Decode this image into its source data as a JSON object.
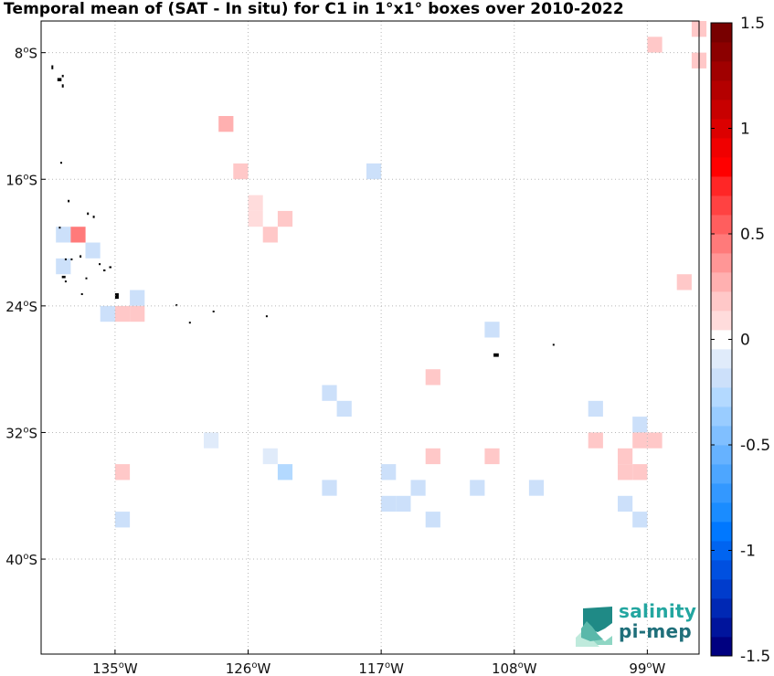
{
  "title": "Temporal mean of (SAT - In situ) for C1 in 1°x1° boxes over 2010-2022",
  "logo": {
    "line1": "salinity",
    "line2": "pi-mep"
  },
  "colors": {
    "grid": "#b8b8b8",
    "frame": "#000000",
    "land": "#000000"
  },
  "chart_data": {
    "type": "heatmap",
    "title": "Temporal mean of (SAT - In situ) for C1 in 1°x1° boxes over 2010-2022",
    "x_ticks": [
      {
        "value": -135,
        "deg": "135",
        "hemi": "W"
      },
      {
        "value": -126,
        "deg": "126",
        "hemi": "W"
      },
      {
        "value": -117,
        "deg": "117",
        "hemi": "W"
      },
      {
        "value": -108,
        "deg": "108",
        "hemi": "W"
      },
      {
        "value": -99,
        "deg": "99",
        "hemi": "W"
      }
    ],
    "y_ticks": [
      {
        "value": -8,
        "deg": "8",
        "hemi": "S"
      },
      {
        "value": -16,
        "deg": "16",
        "hemi": "S"
      },
      {
        "value": -24,
        "deg": "24",
        "hemi": "S"
      },
      {
        "value": -32,
        "deg": "32",
        "hemi": "S"
      },
      {
        "value": -40,
        "deg": "40",
        "hemi": "S"
      }
    ],
    "xlim": [
      -140,
      -95.5
    ],
    "ylim": [
      -46,
      -6
    ],
    "grid": true,
    "colorbar": {
      "vmin": -1.5,
      "vmax": 1.5,
      "ticks": [
        {
          "value": 1.5,
          "label": "1.5"
        },
        {
          "value": 1,
          "label": "1"
        },
        {
          "value": 0.5,
          "label": "0.5"
        },
        {
          "value": 0,
          "label": "0"
        },
        {
          "value": -0.5,
          "label": "-0.5"
        },
        {
          "value": -1,
          "label": "-1"
        },
        {
          "value": -1.5,
          "label": "-1.5"
        }
      ],
      "colors": [
        "#000080",
        "#00149c",
        "#0028b4",
        "#003ccc",
        "#0050e0",
        "#0064f0",
        "#0078ff",
        "#1a8cff",
        "#3398ff",
        "#4da6ff",
        "#66b2ff",
        "#80bfff",
        "#99ccff",
        "#b3d9ff",
        "#cce0fa",
        "#e0ebfa",
        "#ffffff",
        "#ffdcdc",
        "#ffc8c8",
        "#ffb0b0",
        "#ff9696",
        "#ff7a7a",
        "#ff5e5e",
        "#ff4242",
        "#ff2626",
        "#ff0000",
        "#f00000",
        "#dc0000",
        "#c80000",
        "#b40000",
        "#a00000",
        "#8c0000",
        "#780000"
      ]
    },
    "cells": [
      {
        "lon": -98.5,
        "lat": -7.5,
        "value": 0.15
      },
      {
        "lon": -95.5,
        "lat": -6.5,
        "value": 0.15
      },
      {
        "lon": -95.5,
        "lat": -8.5,
        "value": 0.15
      },
      {
        "lon": -127.5,
        "lat": -12.5,
        "value": 0.3
      },
      {
        "lon": -126.5,
        "lat": -15.5,
        "value": 0.15
      },
      {
        "lon": -117.5,
        "lat": -15.5,
        "value": -0.15
      },
      {
        "lon": -125.5,
        "lat": -17.5,
        "value": 0.12
      },
      {
        "lon": -125.5,
        "lat": -18.5,
        "value": 0.12
      },
      {
        "lon": -123.5,
        "lat": -18.5,
        "value": 0.15
      },
      {
        "lon": -124.5,
        "lat": -19.5,
        "value": 0.15
      },
      {
        "lon": -138.5,
        "lat": -19.5,
        "value": -0.15
      },
      {
        "lon": -137.5,
        "lat": -19.5,
        "value": 0.45
      },
      {
        "lon": -136.5,
        "lat": -20.5,
        "value": -0.15
      },
      {
        "lon": -138.5,
        "lat": -21.5,
        "value": -0.15
      },
      {
        "lon": -96.5,
        "lat": -22.5,
        "value": 0.15
      },
      {
        "lon": -133.5,
        "lat": -23.5,
        "value": -0.15
      },
      {
        "lon": -134.5,
        "lat": -24.5,
        "value": 0.15
      },
      {
        "lon": -133.5,
        "lat": -24.5,
        "value": 0.15
      },
      {
        "lon": -135.5,
        "lat": -24.5,
        "value": -0.15
      },
      {
        "lon": -109.5,
        "lat": -25.5,
        "value": -0.15
      },
      {
        "lon": -113.5,
        "lat": -28.5,
        "value": 0.15
      },
      {
        "lon": -120.5,
        "lat": -29.5,
        "value": -0.15
      },
      {
        "lon": -119.5,
        "lat": -30.5,
        "value": -0.15
      },
      {
        "lon": -102.5,
        "lat": -30.5,
        "value": -0.15
      },
      {
        "lon": -99.5,
        "lat": -31.5,
        "value": -0.15
      },
      {
        "lon": -128.5,
        "lat": -32.5,
        "value": -0.12
      },
      {
        "lon": -102.5,
        "lat": -32.5,
        "value": 0.15
      },
      {
        "lon": -99.5,
        "lat": -32.5,
        "value": 0.15
      },
      {
        "lon": -98.5,
        "lat": -32.5,
        "value": 0.15
      },
      {
        "lon": -100.5,
        "lat": -33.5,
        "value": 0.15
      },
      {
        "lon": -124.5,
        "lat": -33.5,
        "value": -0.12
      },
      {
        "lon": -113.5,
        "lat": -33.5,
        "value": 0.15
      },
      {
        "lon": -109.5,
        "lat": -33.5,
        "value": 0.15
      },
      {
        "lon": -100.5,
        "lat": -34.5,
        "value": 0.15
      },
      {
        "lon": -99.5,
        "lat": -34.5,
        "value": 0.15
      },
      {
        "lon": -134.5,
        "lat": -34.5,
        "value": 0.15
      },
      {
        "lon": -123.5,
        "lat": -34.5,
        "value": -0.3
      },
      {
        "lon": -116.5,
        "lat": -34.5,
        "value": -0.15
      },
      {
        "lon": -120.5,
        "lat": -35.5,
        "value": -0.15
      },
      {
        "lon": -114.5,
        "lat": -35.5,
        "value": -0.15
      },
      {
        "lon": -110.5,
        "lat": -35.5,
        "value": -0.15
      },
      {
        "lon": -106.5,
        "lat": -35.5,
        "value": -0.15
      },
      {
        "lon": -116.5,
        "lat": -36.5,
        "value": -0.15
      },
      {
        "lon": -115.5,
        "lat": -36.5,
        "value": -0.15
      },
      {
        "lon": -100.5,
        "lat": -36.5,
        "value": -0.15
      },
      {
        "lon": -134.5,
        "lat": -37.5,
        "value": -0.15
      },
      {
        "lon": -113.5,
        "lat": -37.5,
        "value": -0.15
      },
      {
        "lon": -99.5,
        "lat": -37.5,
        "value": -0.15
      }
    ],
    "land": [
      {
        "lon": -139.3,
        "lat": -8.8,
        "w": 0.12,
        "h": 0.25
      },
      {
        "lon": -138.9,
        "lat": -9.6,
        "w": 0.28,
        "h": 0.2
      },
      {
        "lon": -138.6,
        "lat": -9.4,
        "w": 0.1,
        "h": 0.15
      },
      {
        "lon": -138.6,
        "lat": -10.0,
        "w": 0.12,
        "h": 0.2
      },
      {
        "lon": -138.7,
        "lat": -14.9,
        "w": 0.06,
        "h": 0.1
      },
      {
        "lon": -138.2,
        "lat": -17.3,
        "w": 0.1,
        "h": 0.15
      },
      {
        "lon": -136.9,
        "lat": -18.1,
        "w": 0.12,
        "h": 0.15
      },
      {
        "lon": -136.5,
        "lat": -18.3,
        "w": 0.12,
        "h": 0.15
      },
      {
        "lon": -138.8,
        "lat": -19.0,
        "w": 0.06,
        "h": 0.08
      },
      {
        "lon": -138.4,
        "lat": -21.0,
        "w": 0.1,
        "h": 0.1
      },
      {
        "lon": -138.0,
        "lat": -21.0,
        "w": 0.06,
        "h": 0.08
      },
      {
        "lon": -137.4,
        "lat": -20.8,
        "w": 0.1,
        "h": 0.15
      },
      {
        "lon": -136.1,
        "lat": -21.3,
        "w": 0.08,
        "h": 0.12
      },
      {
        "lon": -135.8,
        "lat": -21.7,
        "w": 0.15,
        "h": 0.1
      },
      {
        "lon": -135.4,
        "lat": -21.5,
        "w": 0.16,
        "h": 0.1
      },
      {
        "lon": -138.6,
        "lat": -22.1,
        "w": 0.25,
        "h": 0.15
      },
      {
        "lon": -138.4,
        "lat": -22.4,
        "w": 0.12,
        "h": 0.1
      },
      {
        "lon": -137.0,
        "lat": -22.2,
        "w": 0.08,
        "h": 0.08
      },
      {
        "lon": -137.3,
        "lat": -23.2,
        "w": 0.06,
        "h": 0.08
      },
      {
        "lon": -135.0,
        "lat": -23.2,
        "w": 0.25,
        "h": 0.35
      },
      {
        "lon": -130.9,
        "lat": -23.9,
        "w": 0.08,
        "h": 0.1
      },
      {
        "lon": -130.0,
        "lat": -25.0,
        "w": 0.06,
        "h": 0.08
      },
      {
        "lon": -128.4,
        "lat": -24.3,
        "w": 0.08,
        "h": 0.1
      },
      {
        "lon": -124.8,
        "lat": -24.6,
        "w": 0.06,
        "h": 0.08
      },
      {
        "lon": -109.4,
        "lat": -27.0,
        "w": 0.35,
        "h": 0.22
      },
      {
        "lon": -105.4,
        "lat": -26.4,
        "w": 0.08,
        "h": 0.08
      }
    ]
  }
}
